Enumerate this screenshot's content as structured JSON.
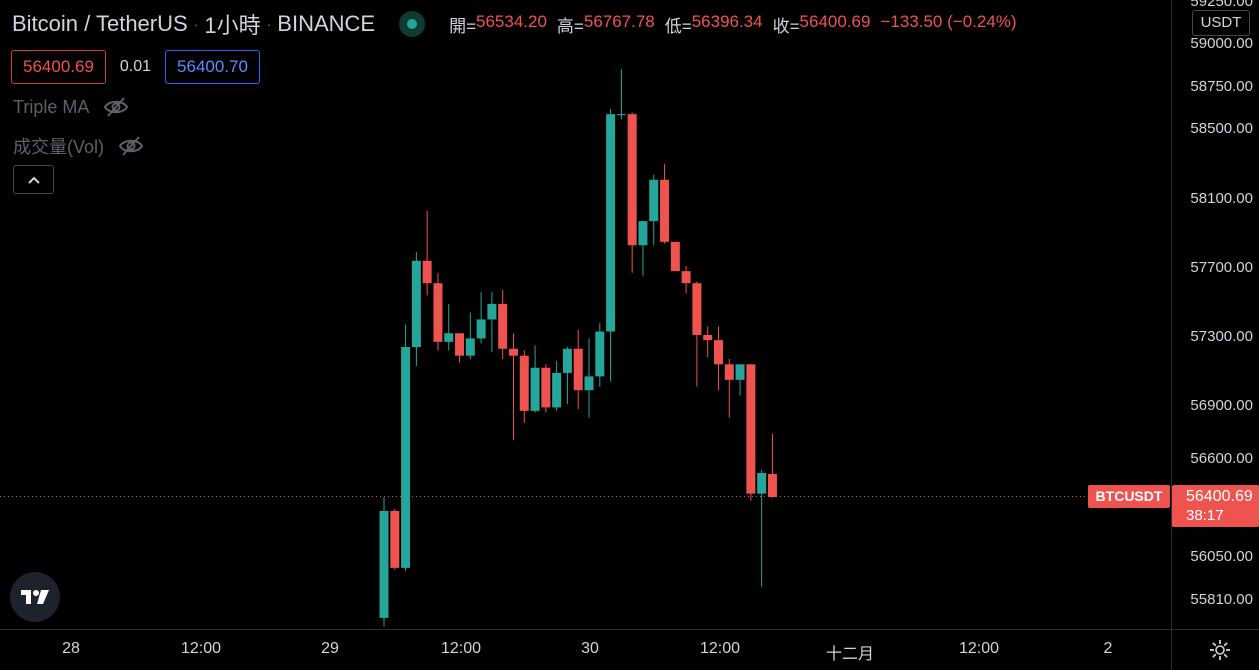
{
  "header": {
    "title": "Bitcoin / TetherUS",
    "sep": "·",
    "interval": "1小時",
    "exchange": "BINANCE",
    "ohlc": {
      "open_label": "開=",
      "open": "56534.20",
      "high_label": "高=",
      "high": "56767.78",
      "low_label": "低=",
      "low": "56396.34",
      "close_label": "收=",
      "close": "56400.69",
      "change": "−133.50 (−0.24%)"
    }
  },
  "trade": {
    "sell_price": "56400.69",
    "spread": "0.01",
    "buy_price": "56400.70"
  },
  "indicators": [
    {
      "name": "Triple MA"
    },
    {
      "name": "成交量(Vol)"
    }
  ],
  "price_axis": {
    "currency": "USDT",
    "top_partial": "59250.00",
    "ticks": [
      "59000.00",
      "58750.00",
      "58500.00",
      "58100.00",
      "57700.00",
      "57300.00",
      "56900.00",
      "56600.00",
      "56050.00",
      "55810.00"
    ],
    "current_price": "56400.69",
    "countdown": "38:17",
    "symbol_tag": "BTCUSDT"
  },
  "time_axis": {
    "ticks": [
      "28",
      "12:00",
      "29",
      "12:00",
      "30",
      "12:00",
      "十二月",
      "12:00",
      "2"
    ]
  },
  "colors": {
    "up": "#26a69a",
    "down": "#ef5350",
    "background": "#000000"
  },
  "icons": [
    "eye-off-icon",
    "chevron-up-icon",
    "tradingview-logo-icon",
    "gear-icon",
    "live-status-dot-icon"
  ],
  "chart_data": {
    "type": "candlestick",
    "interval": "1h",
    "current_price": 56400.69,
    "candles": [
      {
        "o": 55700,
        "h": 56400,
        "l": 55650,
        "c": 56320
      },
      {
        "o": 56320,
        "h": 56330,
        "l": 55980,
        "c": 55990
      },
      {
        "o": 55990,
        "h": 57400,
        "l": 55970,
        "c": 57270
      },
      {
        "o": 57270,
        "h": 57820,
        "l": 57160,
        "c": 57770
      },
      {
        "o": 57770,
        "h": 58060,
        "l": 57570,
        "c": 57640
      },
      {
        "o": 57640,
        "h": 57700,
        "l": 57250,
        "c": 57300
      },
      {
        "o": 57300,
        "h": 57520,
        "l": 57250,
        "c": 57350
      },
      {
        "o": 57350,
        "h": 57350,
        "l": 57180,
        "c": 57220
      },
      {
        "o": 57220,
        "h": 57470,
        "l": 57200,
        "c": 57320
      },
      {
        "o": 57320,
        "h": 57590,
        "l": 57290,
        "c": 57430
      },
      {
        "o": 57430,
        "h": 57590,
        "l": 57240,
        "c": 57520
      },
      {
        "o": 57520,
        "h": 57600,
        "l": 57200,
        "c": 57260
      },
      {
        "o": 57260,
        "h": 57350,
        "l": 56730,
        "c": 57220
      },
      {
        "o": 57220,
        "h": 57250,
        "l": 56830,
        "c": 56900
      },
      {
        "o": 56900,
        "h": 57280,
        "l": 56890,
        "c": 57150
      },
      {
        "o": 57150,
        "h": 57170,
        "l": 56890,
        "c": 56920
      },
      {
        "o": 56920,
        "h": 57190,
        "l": 56900,
        "c": 57120
      },
      {
        "o": 57120,
        "h": 57270,
        "l": 56940,
        "c": 57260
      },
      {
        "o": 57260,
        "h": 57370,
        "l": 56910,
        "c": 57020
      },
      {
        "o": 57020,
        "h": 57320,
        "l": 56860,
        "c": 57100
      },
      {
        "o": 57100,
        "h": 57410,
        "l": 57040,
        "c": 57360
      },
      {
        "o": 57360,
        "h": 58650,
        "l": 57070,
        "c": 58620
      },
      {
        "o": 58620,
        "h": 58880,
        "l": 58590,
        "c": 58620
      },
      {
        "o": 58620,
        "h": 58630,
        "l": 57700,
        "c": 57860
      },
      {
        "o": 57860,
        "h": 58000,
        "l": 57680,
        "c": 58000
      },
      {
        "o": 58000,
        "h": 58270,
        "l": 57860,
        "c": 58240
      },
      {
        "o": 58240,
        "h": 58330,
        "l": 57870,
        "c": 57880
      },
      {
        "o": 57880,
        "h": 57880,
        "l": 57720,
        "c": 57710
      },
      {
        "o": 57710,
        "h": 57740,
        "l": 57580,
        "c": 57640
      },
      {
        "o": 57640,
        "h": 57650,
        "l": 57040,
        "c": 57340
      },
      {
        "o": 57340,
        "h": 57390,
        "l": 57210,
        "c": 57310
      },
      {
        "o": 57310,
        "h": 57390,
        "l": 57020,
        "c": 57170
      },
      {
        "o": 57170,
        "h": 57200,
        "l": 56860,
        "c": 57080
      },
      {
        "o": 57080,
        "h": 57150,
        "l": 56990,
        "c": 57170
      },
      {
        "o": 57170,
        "h": 57170,
        "l": 56380,
        "c": 56420
      },
      {
        "o": 56420,
        "h": 56560,
        "l": 55880,
        "c": 56540
      },
      {
        "o": 56534.2,
        "h": 56767.78,
        "l": 56396.34,
        "c": 56400.69
      }
    ],
    "y_ticks": [
      59000,
      58750,
      58500,
      58100,
      57700,
      57300,
      56900,
      56600,
      56050,
      55810
    ],
    "x_ticks": [
      "28",
      "12:00",
      "29",
      "12:00",
      "30",
      "12:00",
      "十二月",
      "12:00",
      "2"
    ],
    "grid": false
  }
}
